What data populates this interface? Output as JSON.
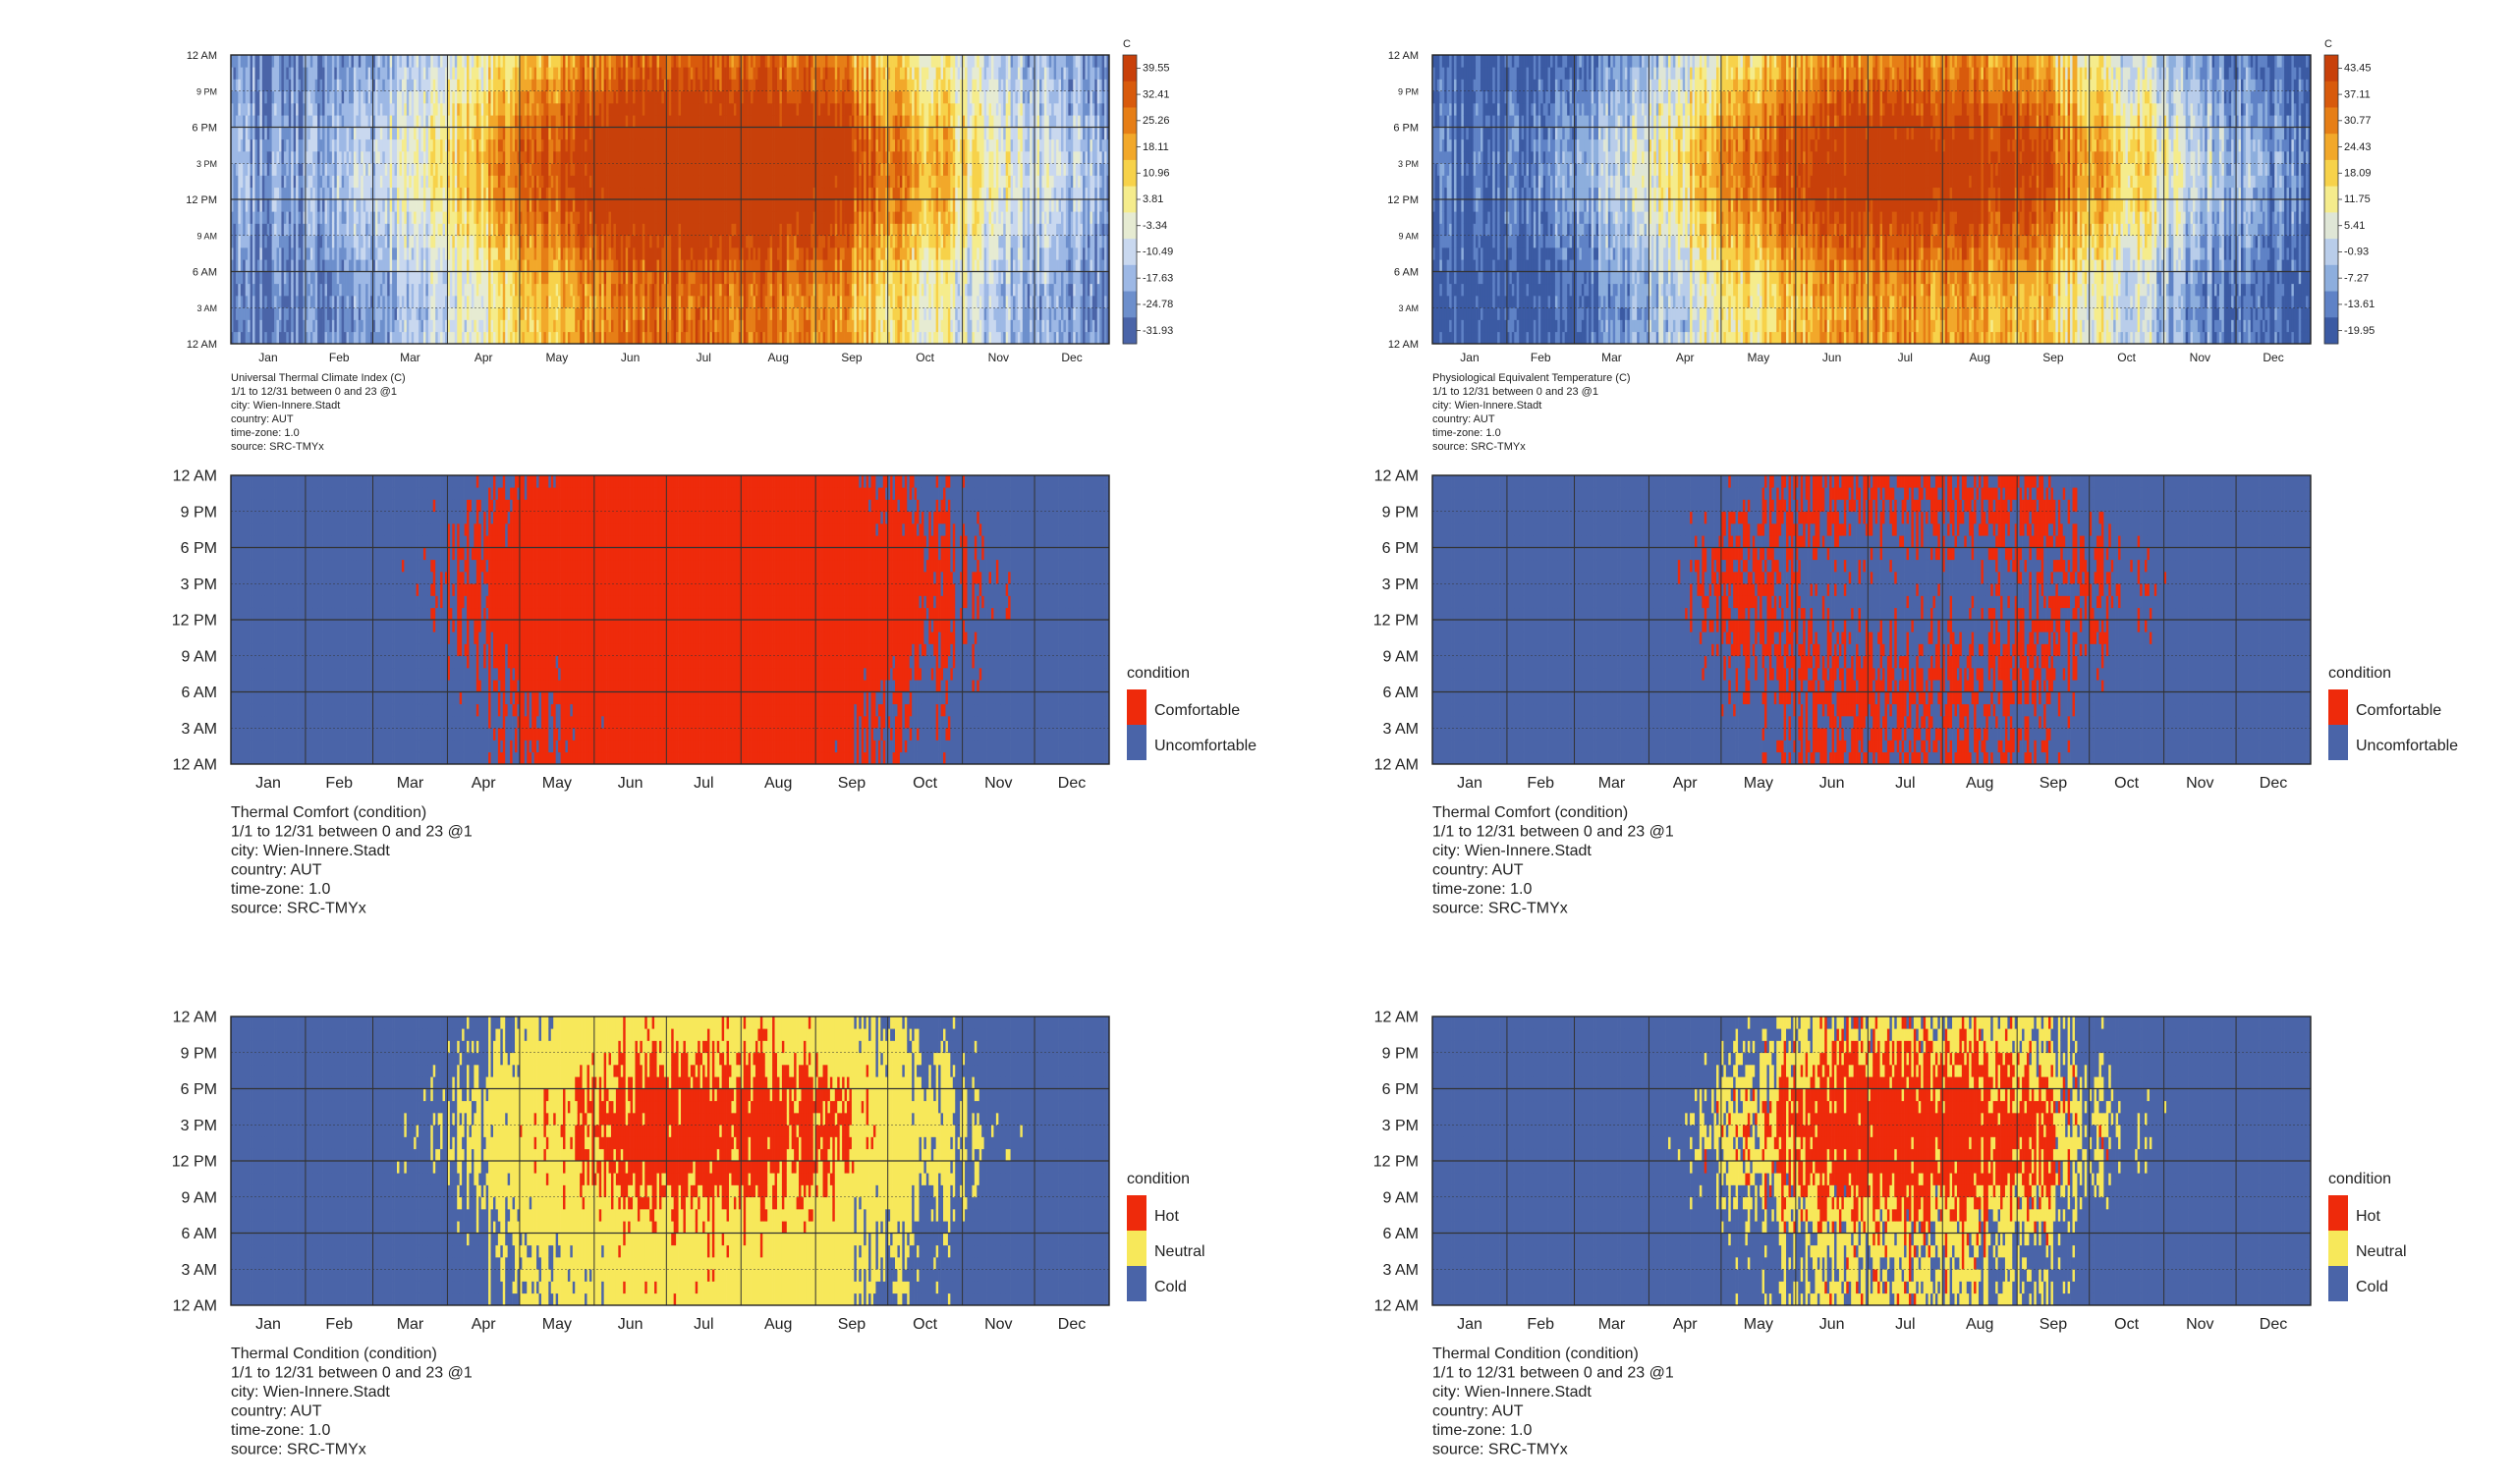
{
  "months": [
    "Jan",
    "Feb",
    "Mar",
    "Apr",
    "May",
    "Jun",
    "Jul",
    "Aug",
    "Sep",
    "Oct",
    "Nov",
    "Dec"
  ],
  "hour_ticks": [
    "12 AM",
    "3 AM",
    "6 AM",
    "9 AM",
    "12 PM",
    "3 PM",
    "6 PM",
    "9 PM",
    "12 AM"
  ],
  "hour_ticks_small": [
    "12 AM",
    "3 AM",
    "6 AM",
    "9 AM",
    "12 PM",
    "3 PM",
    "6 PM",
    "9 PM",
    "12 AM"
  ],
  "colors": {
    "blue": "#4a64a8",
    "red": "#ee2a0b",
    "yellow": "#f7e85a",
    "utci_scale": [
      "#4a64a8",
      "#6d8fcc",
      "#9db8e5",
      "#c9d8ef",
      "#e6ebd2",
      "#f5ec8c",
      "#f7d24a",
      "#f2a82a",
      "#e67e16",
      "#d85a0c",
      "#c8400a"
    ],
    "pet_scale": [
      "#3b5aa3",
      "#5f82c6",
      "#8daedd",
      "#b9cdea",
      "#dfe6d6",
      "#f5ec8c",
      "#f7d24a",
      "#f2a82a",
      "#e67e16",
      "#d85a0c",
      "#c8400a"
    ]
  },
  "chart_data": [
    {
      "type": "heatmap",
      "panel": "utci",
      "x": "day of year (Jan–Dec)",
      "y": "hour of day (12 AM–12 AM)",
      "unit": "C",
      "legend_ticks": [
        "39.55",
        "32.41",
        "25.26",
        "18.11",
        "10.96",
        "3.81",
        "-3.34",
        "-10.49",
        "-17.63",
        "-24.78",
        "-31.93"
      ],
      "value_range": [
        -31.93,
        39.55
      ],
      "title_lines": [
        "Universal Thermal Climate Index (C)",
        "1/1 to 12/31 between 0 and 23 @1",
        "city: Wien-Innere.Stadt",
        "country: AUT",
        "time-zone: 1.0",
        "source: SRC-TMYx"
      ]
    },
    {
      "type": "heatmap",
      "panel": "pet",
      "x": "day of year (Jan–Dec)",
      "y": "hour of day (12 AM–12 AM)",
      "unit": "C",
      "legend_ticks": [
        "43.45",
        "37.11",
        "30.77",
        "24.43",
        "18.09",
        "11.75",
        "5.41",
        "-0.93",
        "-7.27",
        "-13.61",
        "-19.95"
      ],
      "value_range": [
        -19.95,
        43.45
      ],
      "title_lines": [
        "Physiological Equivalent Temperature (C)",
        "1/1 to 12/31 between 0 and 23 @1",
        "city: Wien-Innere.Stadt",
        "country: AUT",
        "time-zone: 1.0",
        "source: SRC-TMYx"
      ]
    },
    {
      "type": "heatmap",
      "panel": "comfort_utci",
      "legend_title": "condition",
      "categories": [
        "Comfortable",
        "Uncomfortable"
      ],
      "title_lines": [
        "Thermal Comfort (condition)",
        "1/1 to 12/31 between 0 and 23 @1",
        "city: Wien-Innere.Stadt",
        "country: AUT",
        "time-zone: 1.0",
        "source: SRC-TMYx"
      ]
    },
    {
      "type": "heatmap",
      "panel": "comfort_pet",
      "legend_title": "condition",
      "categories": [
        "Comfortable",
        "Uncomfortable"
      ],
      "title_lines": [
        "Thermal Comfort (condition)",
        "1/1 to 12/31 between 0 and 23 @1",
        "city: Wien-Innere.Stadt",
        "country: AUT",
        "time-zone: 1.0",
        "source: SRC-TMYx"
      ]
    },
    {
      "type": "heatmap",
      "panel": "condition_utci",
      "legend_title": "condition",
      "categories": [
        "Hot",
        "Neutral",
        "Cold"
      ],
      "title_lines": [
        "Thermal Condition (condition)",
        "1/1 to 12/31 between 0 and 23 @1",
        "city: Wien-Innere.Stadt",
        "country: AUT",
        "time-zone: 1.0",
        "source: SRC-TMYx"
      ]
    },
    {
      "type": "heatmap",
      "panel": "condition_pet",
      "legend_title": "condition",
      "categories": [
        "Hot",
        "Neutral",
        "Cold"
      ],
      "title_lines": [
        "Thermal Condition (condition)",
        "1/1 to 12/31 between 0 and 23 @1",
        "city: Wien-Innere.Stadt",
        "country: AUT",
        "time-zone: 1.0",
        "source: SRC-TMYx"
      ]
    }
  ]
}
